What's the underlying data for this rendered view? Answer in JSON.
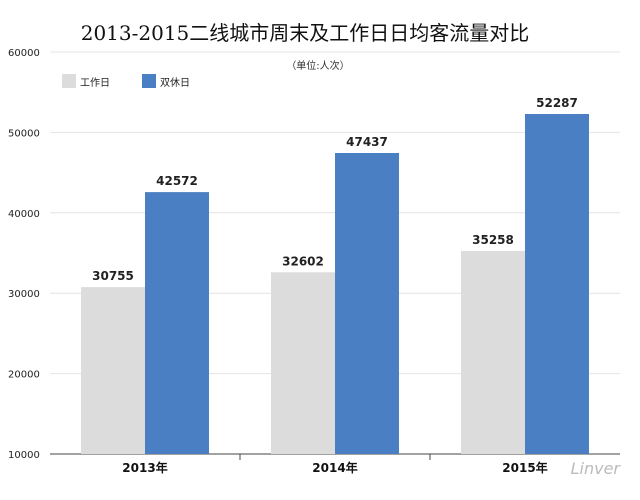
{
  "chart_data": {
    "type": "bar",
    "title": "2013-2015二线城市周末及工作日日均客流量对比",
    "subtitle": "（单位:人次）",
    "categories": [
      "2013年",
      "2014年",
      "2015年"
    ],
    "series": [
      {
        "name": "工作日",
        "values": [
          30755,
          32602,
          35258
        ],
        "color": "#dcdcdc"
      },
      {
        "name": "双休日",
        "values": [
          42572,
          47437,
          52287
        ],
        "color": "#4a7fc4"
      }
    ],
    "data_labels": [
      [
        "30755",
        "42572"
      ],
      [
        "32602",
        "47437"
      ],
      [
        "35258",
        "52287"
      ]
    ],
    "ylim": [
      10000,
      60000
    ],
    "yticks": [
      10000,
      20000,
      30000,
      40000,
      50000,
      60000
    ],
    "ytick_labels": [
      "10000",
      "20000",
      "30000",
      "40000",
      "50000",
      "60000"
    ],
    "grid": true,
    "legend_position": "top-left",
    "xlabel": "",
    "ylabel": ""
  },
  "watermark": "Linver"
}
